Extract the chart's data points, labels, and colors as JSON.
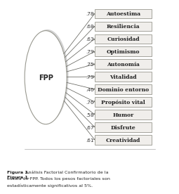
{
  "factor_label": "FPP",
  "items": [
    "Autoestima",
    "Resiliencia",
    "Curiosidad",
    "Optimismo",
    "Autonomía",
    "Vitalidad",
    "Dominio entorno",
    "Propósito vital",
    "Humor",
    "Disfrute",
    "Creatividad"
  ],
  "loadings": [
    ".78",
    ".68",
    ".63",
    ".79",
    ".75",
    ".79",
    ".46",
    ".76",
    ".58",
    ".67",
    ".61"
  ],
  "bg_color": "#ffffff",
  "box_bg": "#f0eeeb",
  "box_shadow": "#c8c8c8",
  "box_edge": "#999990",
  "ellipse_face": "#ffffff",
  "ellipse_edge": "#999990",
  "ellipse_shadow": "#c0c0c0",
  "font_color": "#222222",
  "arrow_color": "#666660",
  "loading_color": "#333333",
  "caption_bold": "Figura 1.",
  "caption_text": " Análisis Factorial Confirmatorio de la escala de FPP. Todos los pesos factoriales son estadísticamente significativos al 5%."
}
